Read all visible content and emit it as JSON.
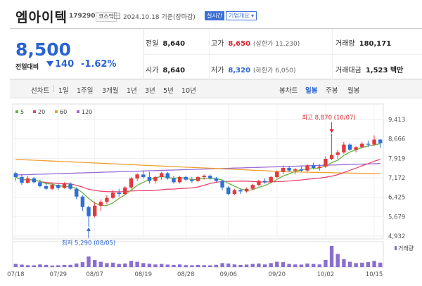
{
  "header": {
    "name": "엠아이텍",
    "code": "179290",
    "market": "코스닥",
    "date": "2024.10.18 기준(장마감)",
    "realtime": "실시간",
    "corp_info": "기업개요 ▾"
  },
  "quote": {
    "price": "8,500",
    "change_label": "전일대비",
    "change": "140",
    "change_pct": "-1.62%",
    "prev_close_label": "전일",
    "prev_close": "8,640",
    "high_label": "고가",
    "high": "8,650",
    "upper_limit": "(상한가 11,230)",
    "volume_label": "거래량",
    "volume": "180,171",
    "open_label": "시가",
    "open": "8,640",
    "low_label": "저가",
    "low": "8,320",
    "lower_limit": "(하한가 6,050)",
    "amount_label": "거래대금",
    "amount": "1,523 백만"
  },
  "periods": {
    "items": [
      "선차트",
      "1일",
      "1주일",
      "3개월",
      "1년",
      "3년",
      "5년",
      "10년"
    ],
    "candle_label": "봉차트",
    "candle_tabs": [
      "일봉",
      "주봉",
      "월봉"
    ]
  },
  "chart_data": {
    "type": "candlestick",
    "legend": [
      {
        "name": "5",
        "color": "#6bb343"
      },
      {
        "name": "20",
        "color": "#e6456f"
      },
      {
        "name": "60",
        "color": "#f0a030"
      },
      {
        "name": "120",
        "color": "#9b6ad6"
      }
    ],
    "y_ticks": [
      "9,413",
      "8,666",
      "7,919",
      "7,172",
      "6,425",
      "5,679",
      "4,932"
    ],
    "y_range": [
      4932,
      9413
    ],
    "x_ticks": [
      "07/18",
      "07/29",
      "08/07",
      "08/19",
      "08/28",
      "09/06",
      "09/20",
      "10/02",
      "10/15"
    ],
    "x_tick_index": [
      0,
      7,
      13,
      21,
      28,
      35,
      43,
      51,
      59
    ],
    "high_annotation": "최고 8,870 (10/07)",
    "low_annotation": "최저 5,290 (08/05)",
    "volume_label": "거래량",
    "candles": [
      [
        7350,
        7400,
        7050,
        7200
      ],
      [
        7200,
        7300,
        6900,
        6980
      ],
      [
        6980,
        7250,
        6950,
        7150
      ],
      [
        7150,
        7200,
        6950,
        7000
      ],
      [
        7000,
        7100,
        6800,
        6850
      ],
      [
        6850,
        6950,
        6700,
        6750
      ],
      [
        6750,
        6950,
        6700,
        6900
      ],
      [
        6900,
        6950,
        6700,
        6780
      ],
      [
        6780,
        7000,
        6750,
        6950
      ],
      [
        6950,
        7000,
        6700,
        6750
      ],
      [
        6750,
        6800,
        6350,
        6450
      ],
      [
        6450,
        6500,
        5900,
        6050
      ],
      [
        6050,
        6100,
        5290,
        5700
      ],
      [
        5700,
        6250,
        5650,
        6100
      ],
      [
        6100,
        6350,
        5900,
        6250
      ],
      [
        6250,
        6500,
        6150,
        6400
      ],
      [
        6400,
        6700,
        6350,
        6600
      ],
      [
        6600,
        6750,
        6450,
        6550
      ],
      [
        6550,
        6850,
        6500,
        6800
      ],
      [
        6800,
        7200,
        6750,
        7150
      ],
      [
        7150,
        7350,
        7050,
        7300
      ],
      [
        7300,
        7450,
        7150,
        7200
      ],
      [
        7200,
        7400,
        6950,
        7050
      ],
      [
        7050,
        7250,
        6950,
        7200
      ],
      [
        7200,
        7400,
        7100,
        7350
      ],
      [
        7350,
        7400,
        7100,
        7150
      ],
      [
        7150,
        7250,
        6950,
        7000
      ],
      [
        7000,
        7250,
        6950,
        7200
      ],
      [
        7200,
        7250,
        7050,
        7100
      ],
      [
        7100,
        7200,
        6980,
        7050
      ],
      [
        7050,
        7250,
        7000,
        7200
      ],
      [
        7200,
        7300,
        7100,
        7250
      ],
      [
        7250,
        7300,
        7100,
        7150
      ],
      [
        7150,
        7200,
        7000,
        7050
      ],
      [
        7050,
        7100,
        6700,
        6800
      ],
      [
        6800,
        6850,
        6500,
        6550
      ],
      [
        6550,
        6750,
        6500,
        6700
      ],
      [
        6700,
        6750,
        6550,
        6650
      ],
      [
        6650,
        6800,
        6600,
        6750
      ],
      [
        6750,
        6950,
        6700,
        6900
      ],
      [
        6900,
        7100,
        6850,
        7050
      ],
      [
        7050,
        7150,
        6950,
        7000
      ],
      [
        7000,
        7250,
        6980,
        7200
      ],
      [
        7200,
        7450,
        7150,
        7400
      ],
      [
        7400,
        7650,
        7300,
        7550
      ],
      [
        7550,
        7600,
        7400,
        7450
      ],
      [
        7450,
        7550,
        7300,
        7500
      ],
      [
        7500,
        7600,
        7400,
        7450
      ],
      [
        7450,
        7700,
        7400,
        7650
      ],
      [
        7650,
        7750,
        7500,
        7550
      ],
      [
        7550,
        7700,
        7450,
        7600
      ],
      [
        7600,
        8000,
        7550,
        7900
      ],
      [
        7900,
        8870,
        7850,
        8050
      ],
      [
        8050,
        8250,
        7900,
        8150
      ],
      [
        8150,
        8550,
        8100,
        8450
      ],
      [
        8450,
        8500,
        8200,
        8250
      ],
      [
        8250,
        8400,
        8150,
        8350
      ],
      [
        8350,
        8550,
        8300,
        8480
      ],
      [
        8480,
        8600,
        8350,
        8450
      ],
      [
        8450,
        8800,
        8400,
        8640
      ],
      [
        8640,
        8650,
        8320,
        8500
      ]
    ],
    "volumes": [
      35,
      28,
      22,
      20,
      30,
      25,
      18,
      20,
      24,
      26,
      40,
      55,
      120,
      80,
      60,
      45,
      50,
      35,
      40,
      70,
      60,
      45,
      38,
      30,
      35,
      28,
      25,
      30,
      22,
      20,
      24,
      22,
      20,
      26,
      45,
      40,
      30,
      25,
      28,
      35,
      40,
      30,
      45,
      60,
      55,
      35,
      30,
      28,
      40,
      35,
      30,
      80,
      240,
      150,
      90,
      60,
      45,
      50,
      55,
      70,
      50
    ]
  }
}
